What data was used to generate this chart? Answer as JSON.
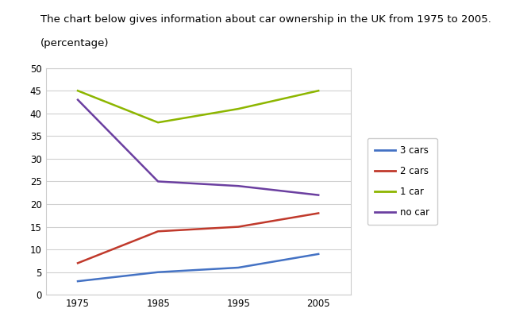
{
  "title_line1": "The chart below gives information about car ownership in the UK from 1975 to 2005.",
  "title_line2": "(percentage)",
  "years": [
    1975,
    1985,
    1995,
    2005
  ],
  "series": {
    "3 cars": {
      "values": [
        3,
        5,
        6,
        9
      ],
      "color": "#4472C4",
      "linewidth": 1.8
    },
    "2 cars": {
      "values": [
        7,
        14,
        15,
        18
      ],
      "color": "#C0392B",
      "linewidth": 1.8
    },
    "1 car": {
      "values": [
        45,
        38,
        41,
        45
      ],
      "color": "#8DB600",
      "linewidth": 1.8
    },
    "no car": {
      "values": [
        43,
        25,
        24,
        22
      ],
      "color": "#6B3FA0",
      "linewidth": 1.8
    }
  },
  "legend_order": [
    "3 cars",
    "2 cars",
    "1 car",
    "no car"
  ],
  "ylim": [
    0,
    50
  ],
  "yticks": [
    0,
    5,
    10,
    15,
    20,
    25,
    30,
    35,
    40,
    45,
    50
  ],
  "xticks": [
    1975,
    1985,
    1995,
    2005
  ],
  "background_color": "#ffffff",
  "plot_bg_color": "#ffffff",
  "grid_color": "#d0d0d0",
  "title_fontsize": 9.5,
  "tick_fontsize": 8.5,
  "legend_fontsize": 8.5,
  "title_bg": "#f0f0f0"
}
